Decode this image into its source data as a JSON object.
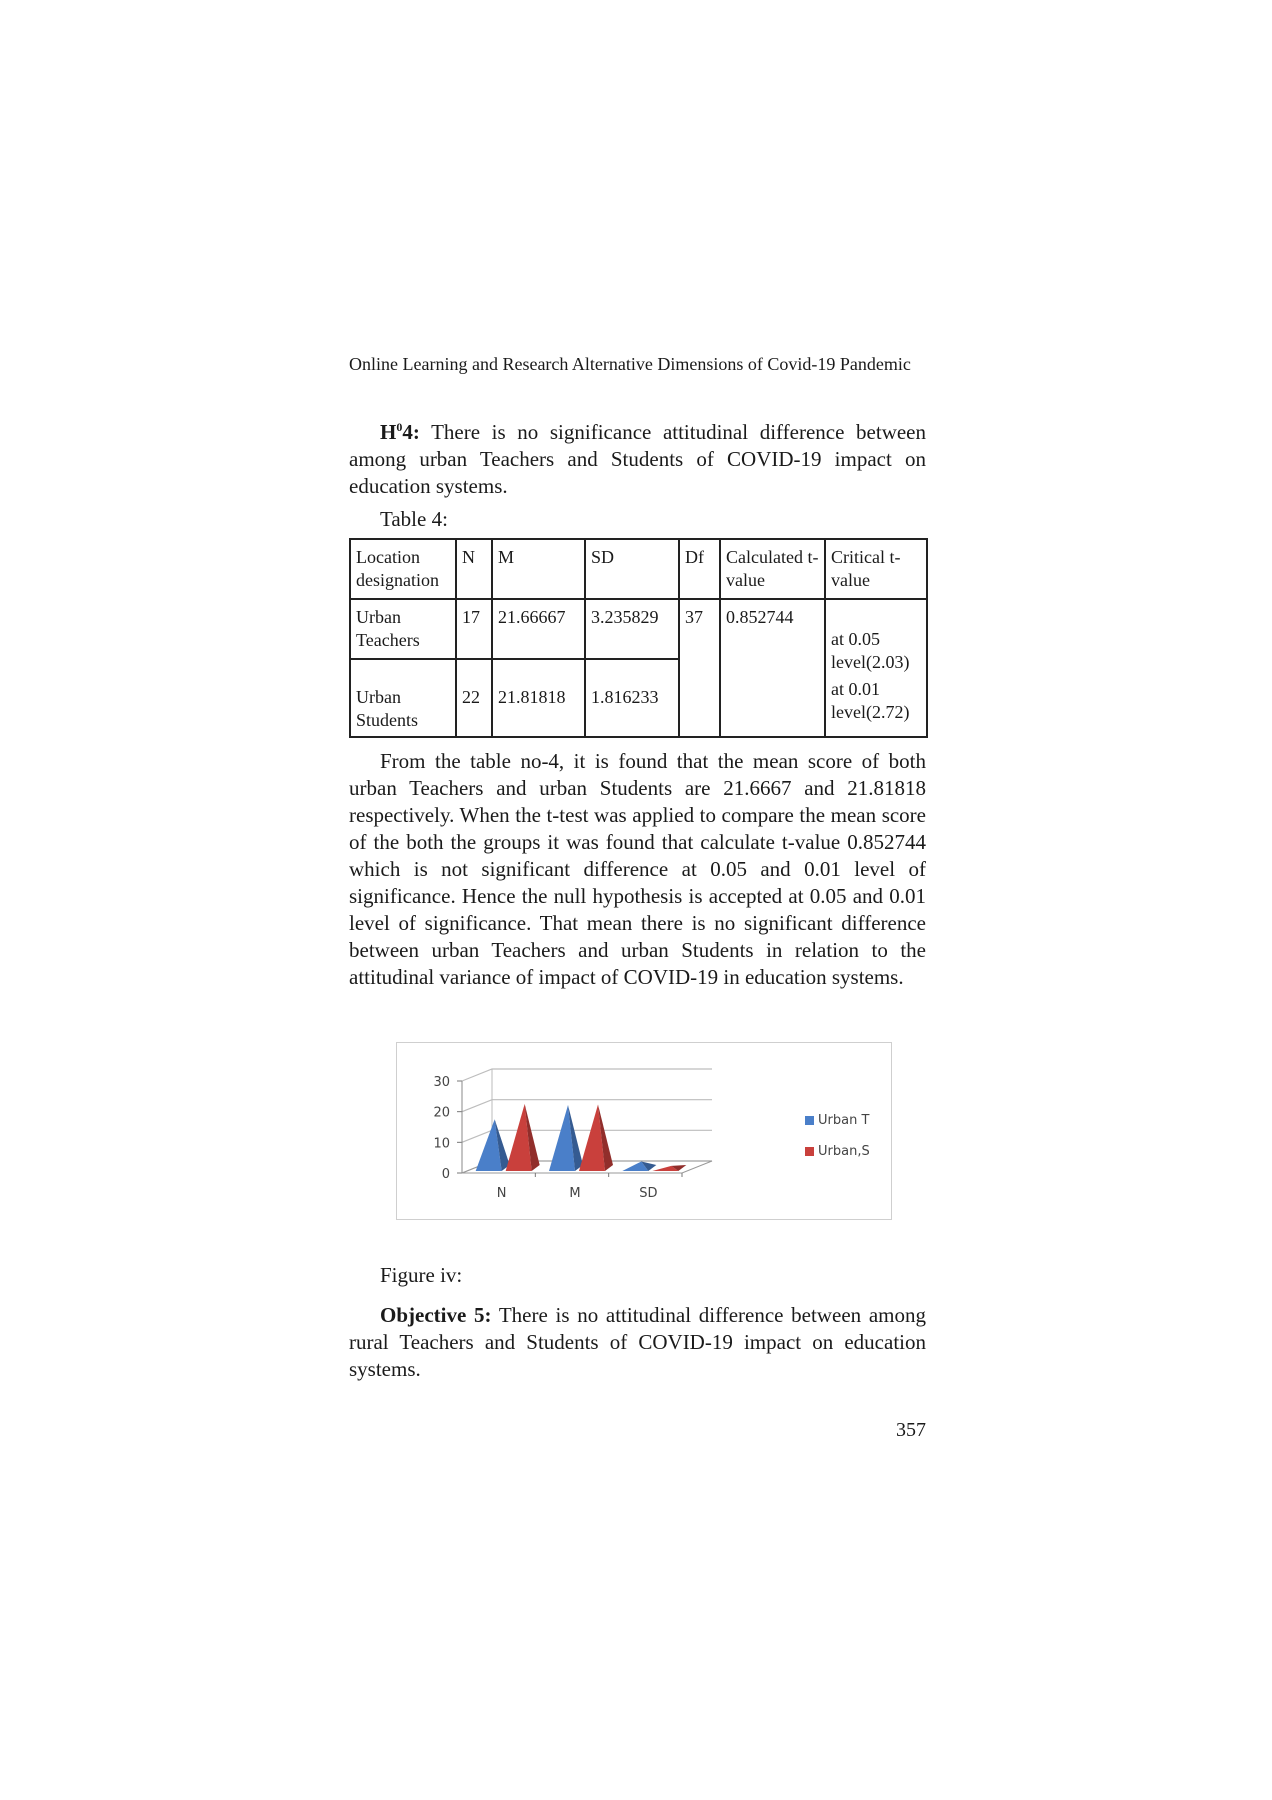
{
  "header": {
    "running_title": "Online Learning and Research Alternative Dimensions of Covid-19 Pandemic"
  },
  "hypothesis": {
    "label_main": "H",
    "label_sup": "0",
    "label_end": "4:",
    "text": " There is no significance attitudinal difference between among urban Teachers and Students of COVID-19 impact on education systems."
  },
  "table_caption": "Table 4:",
  "table": {
    "headers": [
      "Location designation",
      "N",
      "M",
      "SD",
      "Df",
      "Calculated t-value",
      "Critical t-value"
    ],
    "rows": [
      {
        "location": "Urban Teachers",
        "n": "17",
        "m": "21.66667",
        "sd": "3.235829"
      },
      {
        "location": "Urban Students",
        "n": "22",
        "m": "21.81818",
        "sd": "1.816233"
      }
    ],
    "df": "37",
    "calculated_t": "0.852744",
    "critical_1": "at 0.05 level(2.03)",
    "critical_2": "at 0.01 level(2.72)"
  },
  "paragraph": "From the table no-4, it is found that the mean score of both urban Teachers and urban Students are 21.6667 and 21.81818 respectively. When the t-test was applied to compare the mean score of the both the groups it was found that calculate t-value 0.852744 which is not significant difference at 0.05 and 0.01 level of significance. Hence the null hypothesis is accepted at 0.05 and 0.01 level of significance. That mean there is no significant difference between urban Teachers and urban Students in relation to the attitudinal variance of impact of COVID-19 in education systems.",
  "chart_data": {
    "type": "bar",
    "style": "3d-pyramid",
    "categories": [
      "N",
      "M",
      "SD"
    ],
    "series": [
      {
        "name": "Urban T",
        "values": [
          17,
          21.67,
          3.24
        ],
        "color": "#4a7fc9"
      },
      {
        "name": "Urban,S",
        "values": [
          22,
          21.82,
          1.82
        ],
        "color": "#c9403c"
      }
    ],
    "yticks": [
      "0",
      "10",
      "20",
      "30"
    ],
    "ylim": [
      0,
      30
    ],
    "grid": true,
    "legend": "right"
  },
  "figure_caption": "Figure iv:",
  "objective": {
    "label": "Objective 5:",
    "text": " There is no attitudinal difference between among rural Teachers and Students of COVID-19 impact on education systems."
  },
  "page_number": "357"
}
